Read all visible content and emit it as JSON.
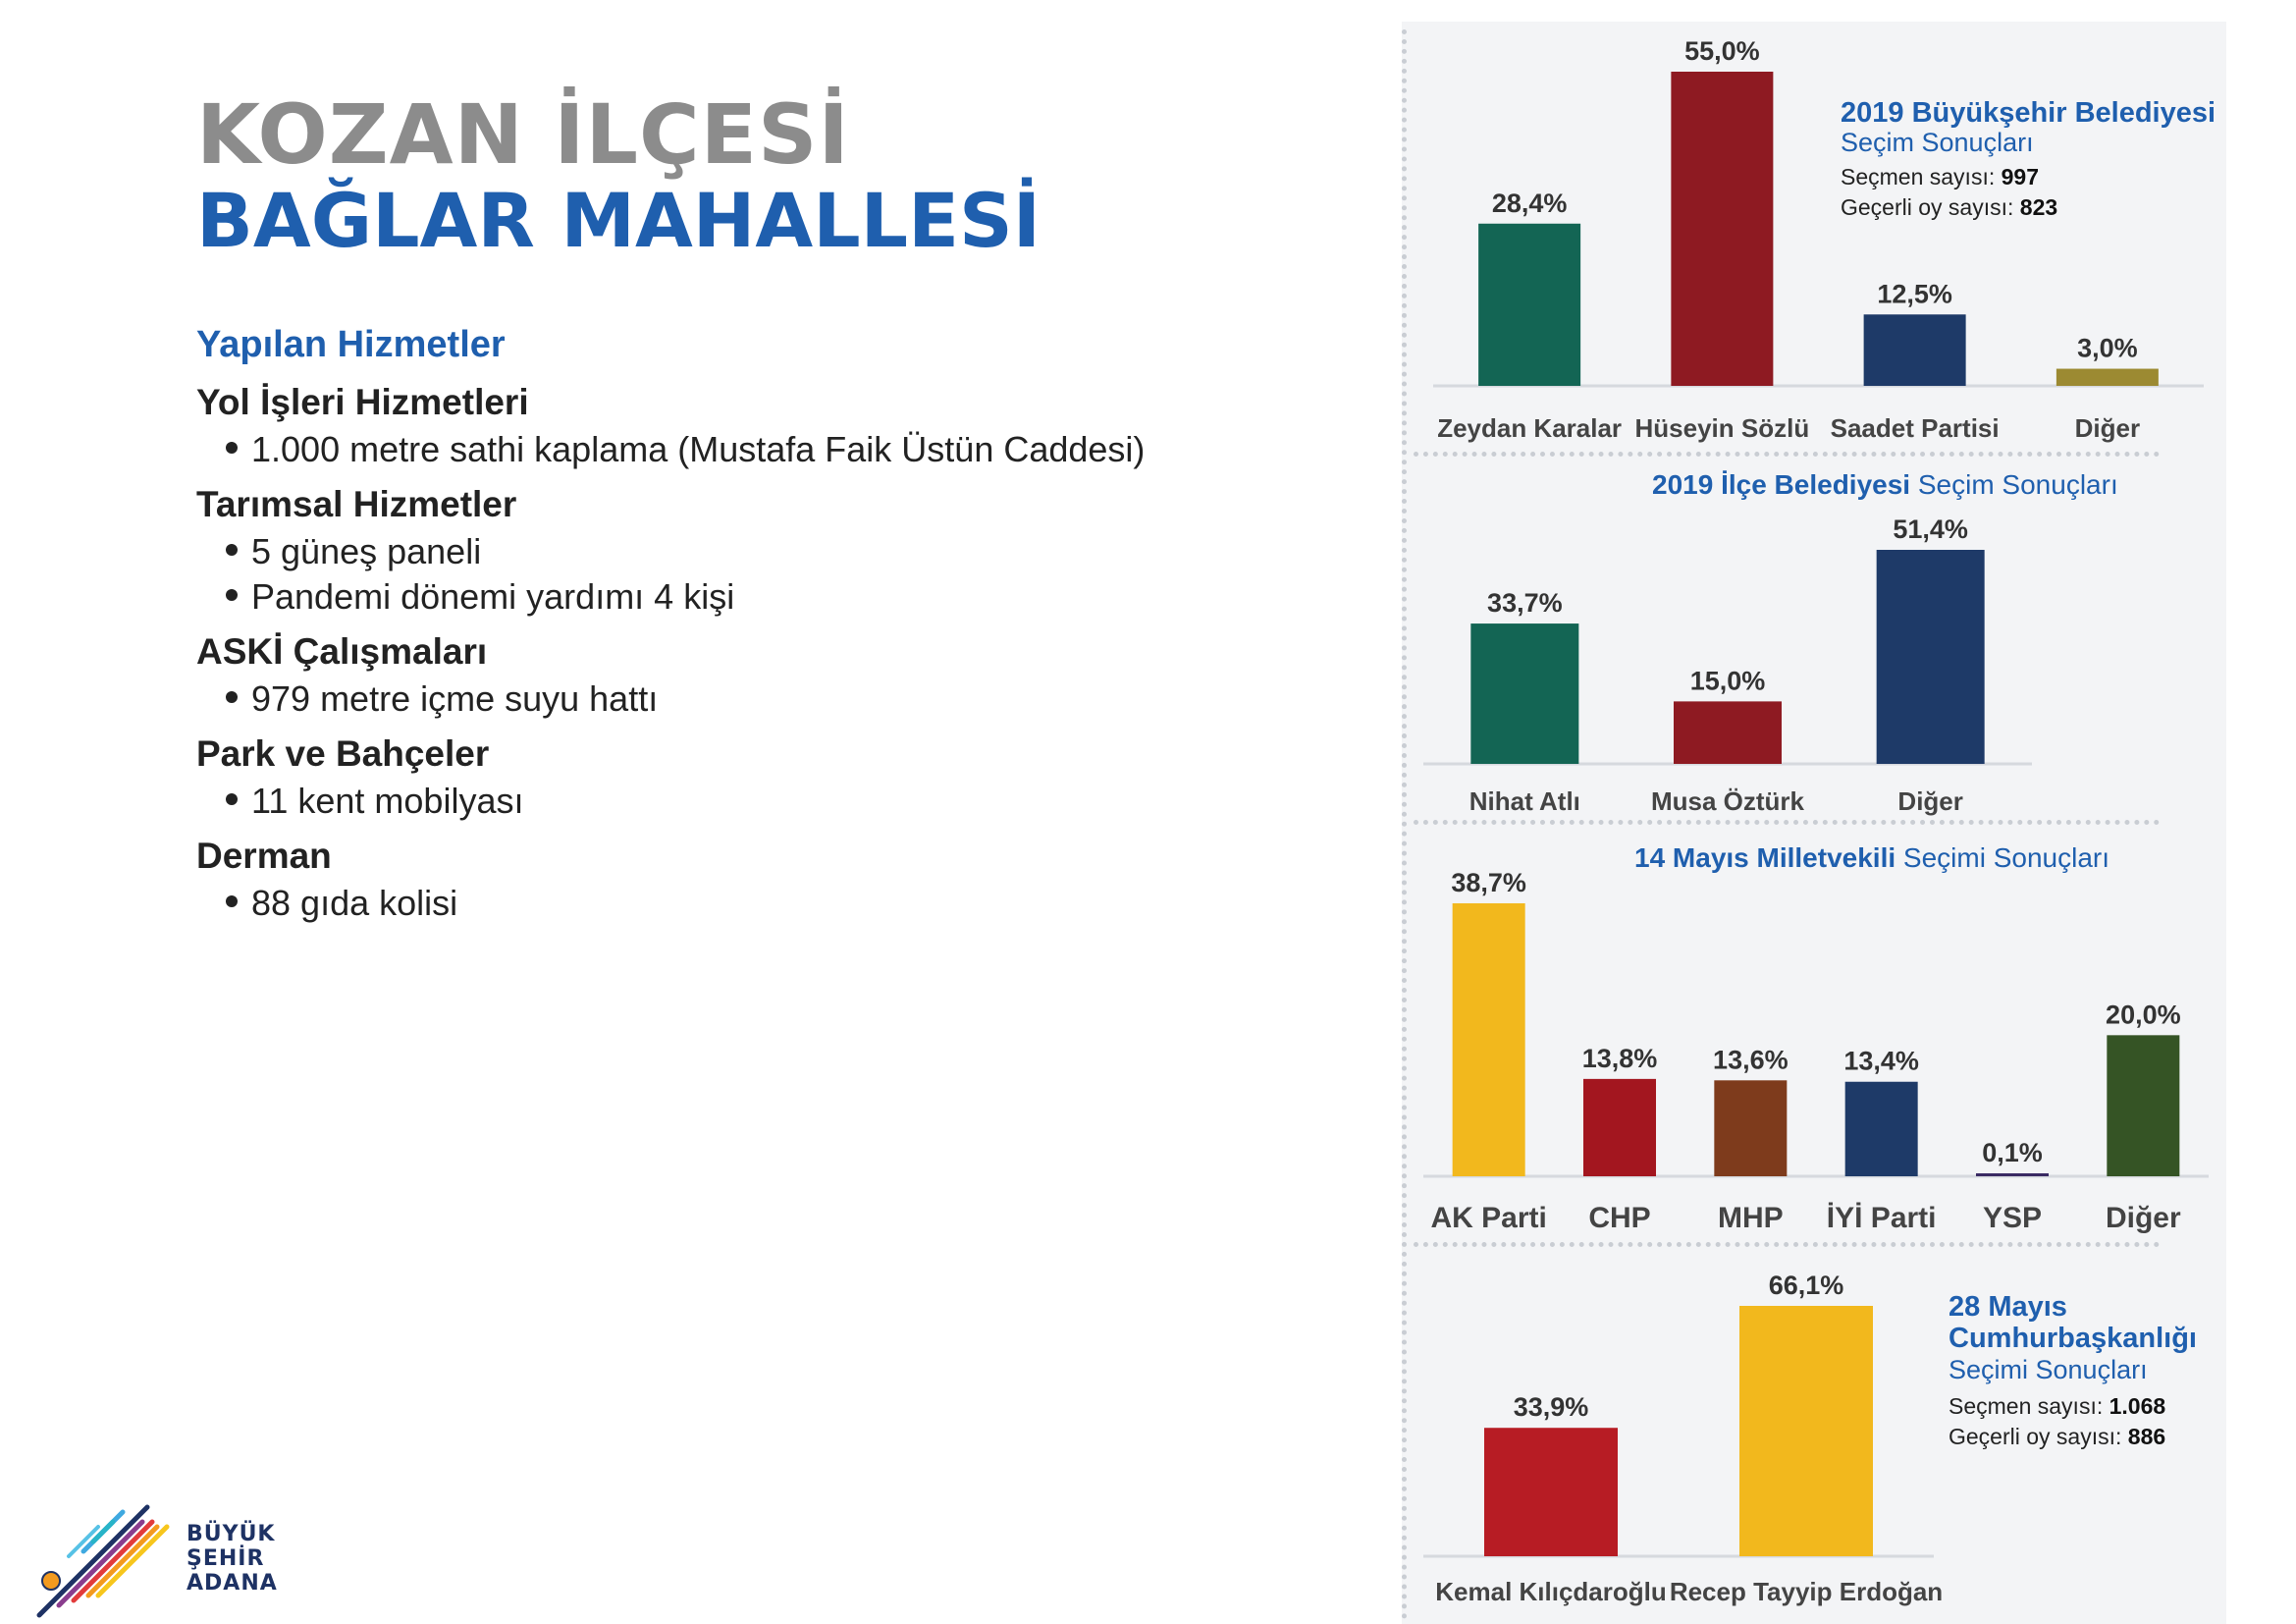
{
  "header": {
    "title_line1": "KOZAN İLÇESİ",
    "title_line2": "BAĞLAR MAHALLESİ"
  },
  "services": {
    "heading": "Yapılan Hizmetler",
    "categories": [
      {
        "title": "Yol İşleri Hizmetleri",
        "items": [
          "1.000 metre sathi kaplama (Mustafa Faik Üstün Caddesi)"
        ]
      },
      {
        "title": "Tarımsal Hizmetler",
        "items": [
          "5 güneş paneli",
          "Pandemi dönemi yardımı 4 kişi"
        ]
      },
      {
        "title": "ASKİ Çalışmaları",
        "items": [
          "979 metre içme suyu hattı"
        ]
      },
      {
        "title": "Park ve Bahçeler",
        "items": [
          "11 kent mobilyası"
        ]
      },
      {
        "title": "Derman",
        "items": [
          "88 gıda kolisi"
        ]
      }
    ]
  },
  "logo": {
    "line1": "BÜYÜK",
    "line2": "ŞEHİR",
    "line3": "ADANA"
  },
  "chart_data": [
    {
      "type": "bar",
      "title_bold": "2019 Büyükşehir Belediyesi",
      "title_regular": "Seçim Sonuçları",
      "info": [
        {
          "label": "Seçmen sayısı: ",
          "value": "997"
        },
        {
          "label": "Geçerli oy sayısı: ",
          "value": "823"
        }
      ],
      "categories": [
        "Zeydan Karalar",
        "Hüseyin Sözlü",
        "Saadet Partisi",
        "Diğer"
      ],
      "values": [
        28.4,
        55.0,
        12.5,
        3.0
      ],
      "value_labels": [
        "28,4%",
        "55,0%",
        "12,5%",
        "3,0%"
      ],
      "colors": [
        "#136554",
        "#8e1a22",
        "#1e3a68",
        "#9c8a32"
      ]
    },
    {
      "type": "bar",
      "title_bold": "2019 İlçe Belediyesi",
      "title_regular": "Seçim Sonuçları",
      "categories": [
        "Nihat Atlı",
        "Musa Öztürk",
        "Diğer"
      ],
      "values": [
        33.7,
        15.0,
        51.4
      ],
      "value_labels": [
        "33,7%",
        "15,0%",
        "51,4%"
      ],
      "colors": [
        "#136554",
        "#8e1a22",
        "#1e3a68"
      ]
    },
    {
      "type": "bar",
      "title_bold": "14 Mayıs Milletvekili",
      "title_regular": "Seçimi Sonuçları",
      "categories": [
        "AK Parti",
        "CHP",
        "MHP",
        "İYİ Parti",
        "YSP",
        "Diğer"
      ],
      "values": [
        38.7,
        13.8,
        13.6,
        13.4,
        0.1,
        20.0
      ],
      "value_labels": [
        "38,7%",
        "13,8%",
        "13,6%",
        "13,4%",
        "0,1%",
        "20,0%"
      ],
      "colors": [
        "#f2b81d",
        "#a3161f",
        "#7e3b1c",
        "#1e3a68",
        "#3a2a63",
        "#355425"
      ]
    },
    {
      "type": "bar",
      "title_lines_bold": [
        "28 Mayıs",
        "Cumhurbaşkanlığı"
      ],
      "title_regular": "Seçimi Sonuçları",
      "info": [
        {
          "label": "Seçmen sayısı: ",
          "value": "1.068"
        },
        {
          "label": "Geçerli oy sayısı: ",
          "value": "886"
        }
      ],
      "categories": [
        "Kemal Kılıçdaroğlu",
        "Recep Tayyip Erdoğan"
      ],
      "values": [
        33.9,
        66.1
      ],
      "value_labels": [
        "33,9%",
        "66,1%"
      ],
      "colors": [
        "#b71c24",
        "#f2b81d"
      ]
    }
  ]
}
